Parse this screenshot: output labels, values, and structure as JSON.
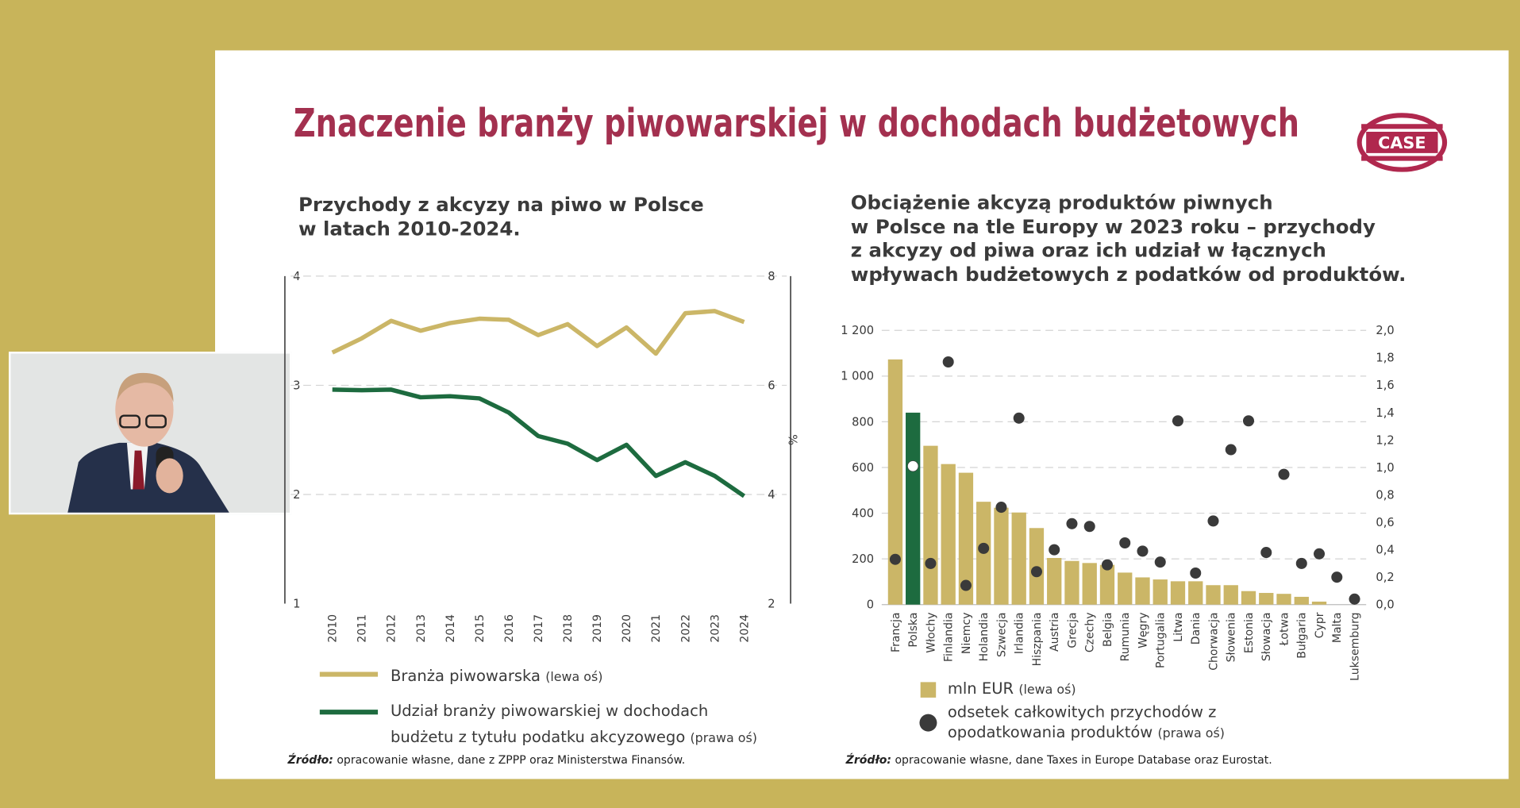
{
  "slide": {
    "title": "Znaczenie branży piwowarskiej w dochodach budżetowych",
    "logo": "CASE"
  },
  "chart_data": [
    {
      "type": "line",
      "title": [
        "Przychody z akcyzy na piwo w Polsce",
        "w latach 2010-2024."
      ],
      "categories": [
        "2010",
        "2011",
        "2012",
        "2013",
        "2014",
        "2015",
        "2016",
        "2017",
        "2018",
        "2019",
        "2020",
        "2021",
        "2022",
        "2023",
        "2024"
      ],
      "series": [
        {
          "name": "Branża piwowarska",
          "note": "(lewa oś)",
          "color": "#cbb667",
          "values": [
            3.3,
            3.43,
            3.59,
            3.5,
            3.57,
            3.61,
            3.6,
            3.46,
            3.56,
            3.36,
            3.53,
            3.29,
            3.66,
            3.68,
            3.58
          ]
        },
        {
          "name": "Udział branży piwowarskiej w dochodach budżetu z tytułu podatku akcyzowego",
          "note": "(prawa oś)",
          "color": "#1d6b3f",
          "axis": "y2",
          "values": [
            5.92,
            5.91,
            5.92,
            5.78,
            5.8,
            5.76,
            5.5,
            5.07,
            4.93,
            4.63,
            4.91,
            4.34,
            4.59,
            4.34,
            3.97
          ]
        }
      ],
      "ylim": [
        1,
        4
      ],
      "yticks": [
        1,
        2,
        3,
        4
      ],
      "y2lim": [
        2,
        8
      ],
      "y2ticks": [
        2,
        4,
        6,
        8
      ],
      "y2label": "%",
      "grid": true,
      "source": {
        "label": "Źródło:",
        "text": "opracowanie własne, dane z ZPPP oraz Ministerstwa Finansów."
      }
    },
    {
      "type": "bar",
      "title": [
        "Obciążenie akcyzą produktów piwnych",
        "w Polsce na tle Europy w 2023 roku – przychody",
        "z akcyzy od piwa oraz ich udział w łącznych",
        "wpływach budżetowych z podatków od produktów."
      ],
      "categories": [
        "Francja",
        "Polska",
        "Włochy",
        "Finlandia",
        "Niemcy",
        "Holandia",
        "Szwecja",
        "Irlandia",
        "Hiszpania",
        "Austria",
        "Grecja",
        "Czechy",
        "Belgia",
        "Rumunia",
        "Węgry",
        "Portugalia",
        "Litwa",
        "Dania",
        "Chorwacja",
        "Słowenia",
        "Estonia",
        "Słowacja",
        "Łotwa",
        "Bułgaria",
        "Cypr",
        "Malta",
        "Luksemburg"
      ],
      "series": [
        {
          "name": "mln EUR",
          "note": "(lewa oś)",
          "type": "bar",
          "color": "#cbb667",
          "colors": [
            "#cbb667",
            "#1d6b3f",
            "#cbb667",
            "#cbb667",
            "#cbb667",
            "#cbb667",
            "#cbb667",
            "#cbb667",
            "#cbb667",
            "#cbb667",
            "#cbb667",
            "#cbb667",
            "#cbb667",
            "#cbb667",
            "#cbb667",
            "#cbb667",
            "#cbb667",
            "#cbb667",
            "#cbb667",
            "#cbb667",
            "#cbb667",
            "#cbb667",
            "#cbb667",
            "#cbb667",
            "#cbb667",
            "#cbb667",
            "#cbb667"
          ],
          "values": [
            1073,
            840,
            695,
            615,
            577,
            450,
            424,
            403,
            335,
            204,
            191,
            182,
            174,
            140,
            119,
            110,
            102,
            102,
            85,
            85,
            59,
            51,
            47,
            34,
            13,
            0,
            0
          ]
        },
        {
          "name": "odsetek całkowitych przychodów z opodatkowania produktów",
          "note": "(prawa oś)",
          "type": "scatter",
          "axis": "y2",
          "color": "#3a3a3a",
          "colors": [
            "#3a3a3a",
            "#ffffff",
            "#3a3a3a",
            "#3a3a3a",
            "#3a3a3a",
            "#3a3a3a",
            "#3a3a3a",
            "#3a3a3a",
            "#3a3a3a",
            "#3a3a3a",
            "#3a3a3a",
            "#3a3a3a",
            "#3a3a3a",
            "#3a3a3a",
            "#3a3a3a",
            "#3a3a3a",
            "#3a3a3a",
            "#3a3a3a",
            "#3a3a3a",
            "#3a3a3a",
            "#3a3a3a",
            "#3a3a3a",
            "#3a3a3a",
            "#3a3a3a",
            "#3a3a3a",
            "#3a3a3a",
            "#3a3a3a"
          ],
          "values": [
            0.33,
            1.01,
            0.3,
            1.77,
            0.14,
            0.41,
            0.71,
            1.36,
            0.24,
            0.4,
            0.59,
            0.57,
            0.29,
            0.45,
            0.39,
            0.31,
            1.34,
            0.23,
            0.61,
            1.13,
            1.34,
            0.38,
            0.95,
            0.3,
            0.37,
            0.2,
            0.04
          ]
        }
      ],
      "ylim": [
        0,
        1200
      ],
      "yticks": [
        0,
        200,
        400,
        600,
        800,
        {
          "value": 1000,
          "label": "1 000"
        },
        {
          "value": 1200,
          "label": "1 200"
        }
      ],
      "y2lim": [
        0,
        2
      ],
      "y2ticks": [
        {
          "value": 0,
          "label": "0,0"
        },
        {
          "value": 0.2,
          "label": "0,2"
        },
        {
          "value": 0.4,
          "label": "0,4"
        },
        {
          "value": 0.6,
          "label": "0,6"
        },
        {
          "value": 0.8,
          "label": "0,8"
        },
        {
          "value": 1,
          "label": "1,0"
        },
        {
          "value": 1.2,
          "label": "1,2"
        },
        {
          "value": 1.4,
          "label": "1,4"
        },
        {
          "value": 1.6,
          "label": "1,6"
        },
        {
          "value": 1.8,
          "label": "1,8"
        },
        {
          "value": 2,
          "label": "2,0"
        }
      ],
      "grid": true,
      "source": {
        "label": "Źródło:",
        "text": "opracowanie własne, dane Taxes in Europe Database oraz Eurostat."
      }
    }
  ]
}
